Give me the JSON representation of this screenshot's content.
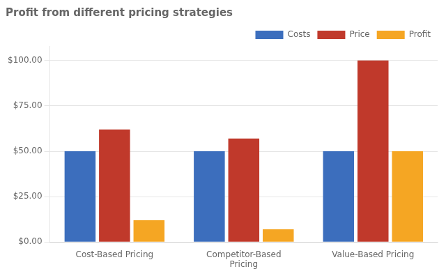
{
  "chart_data": {
    "type": "bar",
    "title": "Profit from different pricing strategies",
    "categories": [
      "Cost-Based Pricing",
      "Competitor-Based\nPricing",
      "Value-Based Pricing"
    ],
    "series": [
      {
        "name": "Costs",
        "color": "#3C6EBD",
        "values": [
          50,
          50,
          50
        ]
      },
      {
        "name": "Price",
        "color": "#C0392B",
        "values": [
          62,
          57,
          100
        ]
      },
      {
        "name": "Profit",
        "color": "#F5A623",
        "values": [
          12,
          7,
          50
        ]
      }
    ],
    "ylim": [
      0,
      108
    ],
    "yticks": [
      {
        "value": 0,
        "label": "$0.00"
      },
      {
        "value": 25,
        "label": "$25.00"
      },
      {
        "value": 50,
        "label": "$50.00"
      },
      {
        "value": 75,
        "label": "$75.00"
      },
      {
        "value": 100,
        "label": "$100.00"
      }
    ],
    "grid": true,
    "legend": "upper right"
  }
}
